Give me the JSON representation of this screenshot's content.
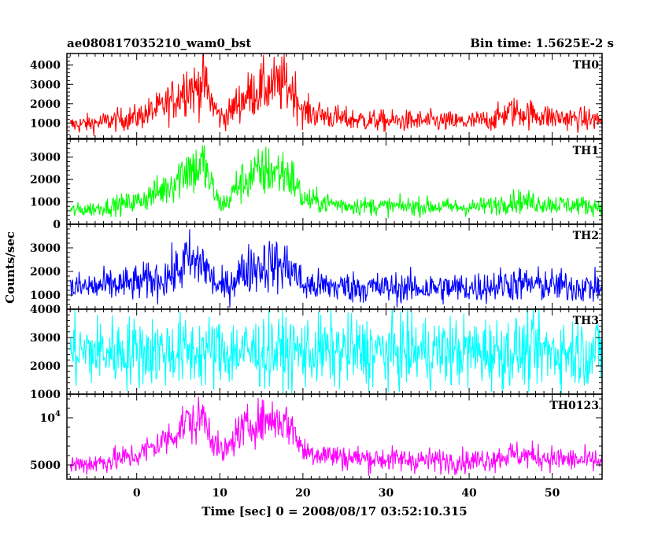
{
  "chart_data": {
    "type": "line",
    "title": "ae080817035210_wam0_bst",
    "subtitle": "Bin time: 1.5625E-2 s",
    "xlabel": "Time [sec] 0 = 2008/08/17 03:52:10.315",
    "ylabel": "Counts/sec",
    "xlim": [
      -8.4,
      56
    ],
    "xticks": [
      "0",
      "10",
      "20",
      "30",
      "40",
      "50"
    ],
    "xtick_values": [
      0,
      10,
      20,
      30,
      40,
      50
    ],
    "grid": false,
    "panels": [
      {
        "name": "TH0",
        "color": "#ff0000",
        "ylim": [
          200,
          4600
        ],
        "yticks": [
          "1000",
          "2000",
          "3000",
          "4000"
        ],
        "ytick_values": [
          1000,
          2000,
          3000,
          4000
        ],
        "envelope": {
          "x": [
            -8,
            -5,
            0,
            3,
            5,
            6,
            7,
            8,
            9,
            10,
            11,
            12,
            14,
            16,
            18,
            19,
            20,
            25,
            30,
            35,
            40,
            43,
            45,
            47,
            50,
            53,
            56
          ],
          "mean": [
            900,
            1000,
            1300,
            1800,
            2400,
            3000,
            2700,
            3200,
            2100,
            1300,
            1400,
            2000,
            2600,
            2900,
            3000,
            2600,
            1600,
            1200,
            1100,
            1100,
            1050,
            1200,
            1600,
            1500,
            1300,
            1200,
            1150
          ]
        }
      },
      {
        "name": "TH1",
        "color": "#00ff00",
        "ylim": [
          0,
          3800
        ],
        "yticks": [
          "0",
          "1000",
          "2000",
          "3000"
        ],
        "ytick_values": [
          0,
          1000,
          2000,
          3000
        ],
        "envelope": {
          "x": [
            -8,
            -5,
            0,
            3,
            5,
            6,
            7,
            8,
            9,
            10,
            11,
            12,
            14,
            16,
            18,
            19,
            20,
            25,
            30,
            35,
            40,
            43,
            45,
            47,
            50,
            53,
            56
          ],
          "mean": [
            600,
            700,
            1000,
            1500,
            2100,
            2600,
            2400,
            2700,
            1700,
            900,
            1000,
            1700,
            2200,
            2400,
            2300,
            1900,
            1100,
            850,
            800,
            800,
            750,
            850,
            1050,
            1000,
            900,
            850,
            800
          ]
        }
      },
      {
        "name": "TH2",
        "color": "#0000ff",
        "ylim": [
          400,
          4000
        ],
        "yticks": [
          "1000",
          "2000",
          "3000"
        ],
        "ytick_values": [
          1000,
          2000,
          3000
        ],
        "envelope": {
          "x": [
            -8,
            -5,
            0,
            3,
            5,
            6,
            7,
            8,
            9,
            10,
            11,
            12,
            14,
            16,
            18,
            19,
            20,
            25,
            30,
            35,
            40,
            43,
            45,
            47,
            50,
            53,
            56
          ],
          "mean": [
            1300,
            1350,
            1500,
            1700,
            2000,
            2500,
            2300,
            2400,
            1700,
            1300,
            1400,
            1800,
            2200,
            2300,
            2200,
            2000,
            1400,
            1350,
            1300,
            1300,
            1300,
            1400,
            1500,
            1450,
            1400,
            1350,
            1300
          ]
        }
      },
      {
        "name": "TH3",
        "color": "#00ffff",
        "ylim": [
          1000,
          4000
        ],
        "yticks": [
          "1000",
          "2000",
          "3000",
          "4000"
        ],
        "ytick_values": [
          1000,
          2000,
          3000,
          4000
        ],
        "envelope": {
          "x": [
            -8,
            56
          ],
          "mean": [
            2500,
            2500
          ]
        }
      },
      {
        "name": "TH0123",
        "color": "#ff00ff",
        "ylim": [
          3500,
          12500
        ],
        "yticks": [
          "5000",
          "10^4"
        ],
        "ytick_values": [
          5000,
          10000
        ],
        "envelope": {
          "x": [
            -8,
            -5,
            0,
            3,
            5,
            6,
            7,
            8,
            9,
            10,
            11,
            12,
            14,
            16,
            18,
            19,
            20,
            25,
            30,
            35,
            40,
            43,
            45,
            47,
            50,
            53,
            56
          ],
          "mean": [
            5000,
            5200,
            6000,
            7400,
            8600,
            9800,
            9200,
            10300,
            8200,
            6300,
            6600,
            8300,
            9400,
            9900,
            9500,
            8600,
            6500,
            5800,
            5600,
            5500,
            5400,
            5700,
            6100,
            6000,
            5700,
            5500,
            5400
          ]
        }
      }
    ]
  }
}
